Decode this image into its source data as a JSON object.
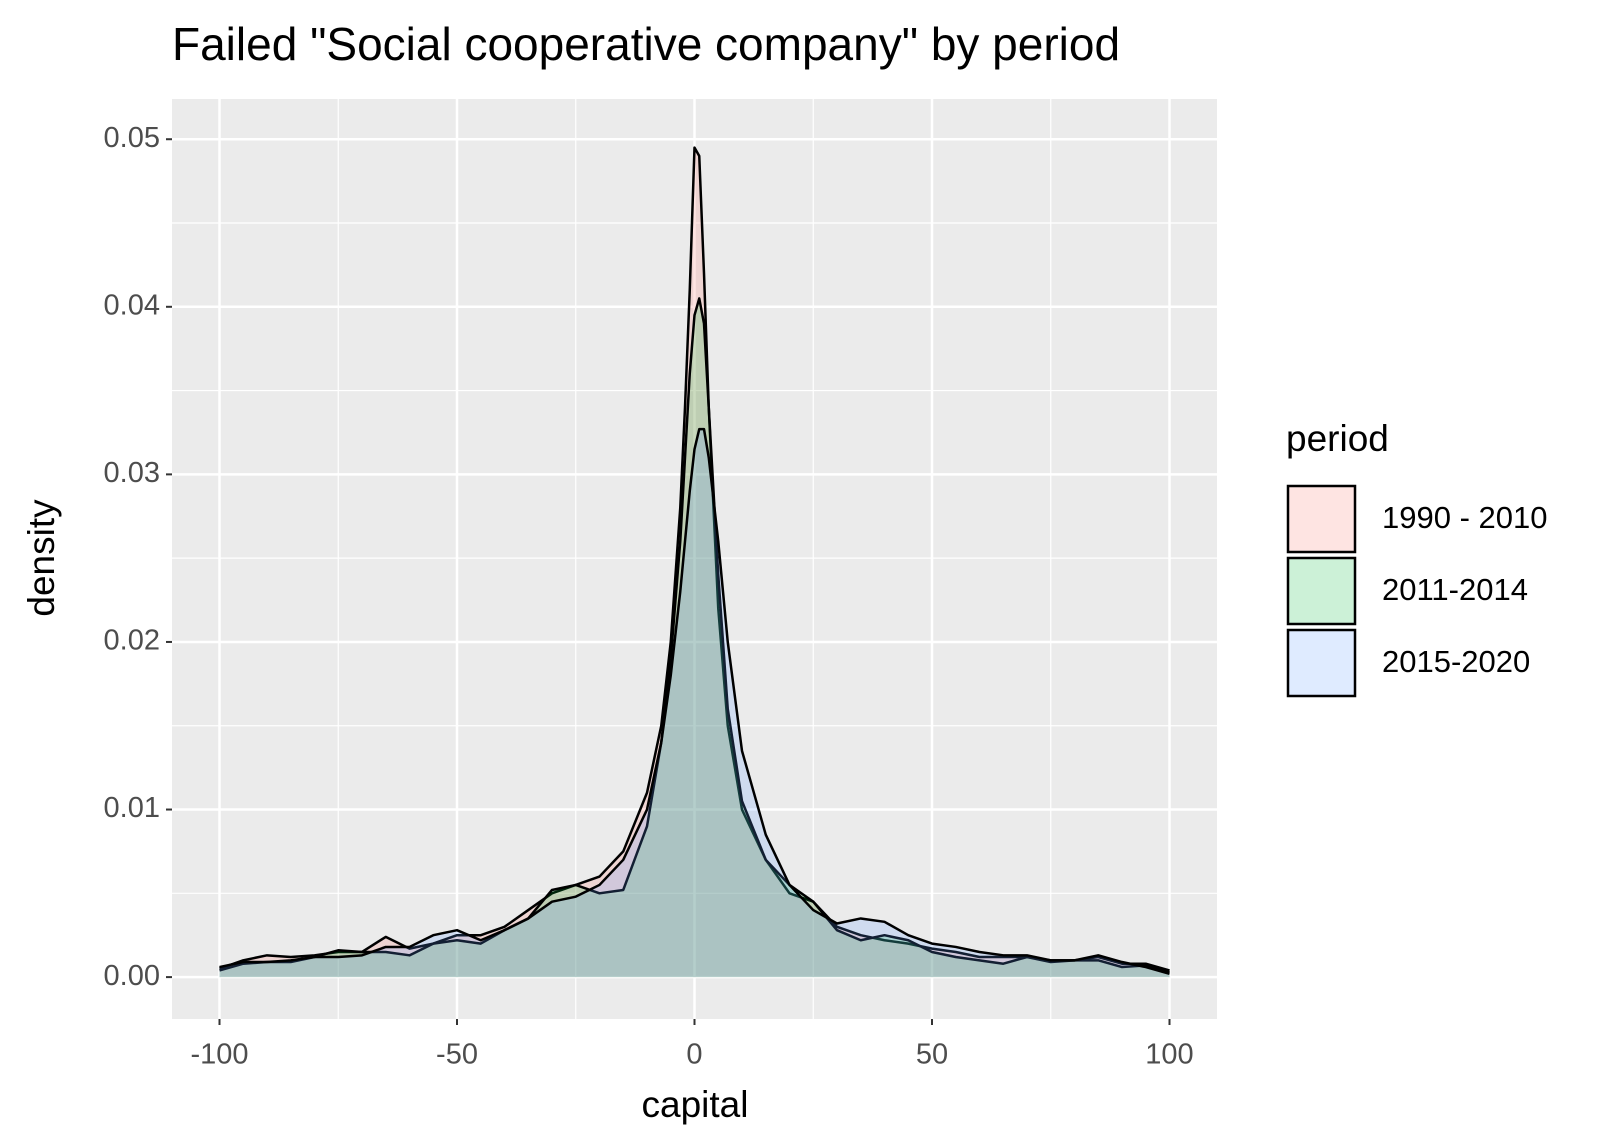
{
  "chart_data": {
    "type": "density",
    "title": "Failed \"Social cooperative company\" by period",
    "x_label": "capital",
    "y_label": "density",
    "legend_title": "period",
    "x": [
      -100,
      -95,
      -90,
      -85,
      -80,
      -75,
      -70,
      -65,
      -60,
      -55,
      -50,
      -45,
      -40,
      -35,
      -30,
      -25,
      -20,
      -15,
      -10,
      -7,
      -5,
      -3,
      -2,
      -1,
      0,
      1,
      2,
      3,
      5,
      7,
      10,
      15,
      20,
      25,
      30,
      35,
      40,
      45,
      50,
      55,
      60,
      65,
      70,
      75,
      80,
      85,
      90,
      95,
      100
    ],
    "series": [
      {
        "name": "1990 - 2010",
        "color": "#F8766D",
        "values": [
          0.0005,
          0.001,
          0.0013,
          0.0012,
          0.0013,
          0.0015,
          0.0015,
          0.0024,
          0.0017,
          0.002,
          0.0025,
          0.0025,
          0.003,
          0.004,
          0.005,
          0.0055,
          0.006,
          0.0075,
          0.011,
          0.015,
          0.02,
          0.028,
          0.034,
          0.041,
          0.0495,
          0.049,
          0.042,
          0.034,
          0.022,
          0.015,
          0.01,
          0.007,
          0.005,
          0.0045,
          0.003,
          0.0025,
          0.0022,
          0.002,
          0.0017,
          0.0015,
          0.0012,
          0.0012,
          0.0012,
          0.001,
          0.001,
          0.0012,
          0.0008,
          0.0008,
          0.0004
        ]
      },
      {
        "name": "2011-2014",
        "color": "#00BA38",
        "values": [
          0.0004,
          0.0008,
          0.0009,
          0.0009,
          0.0012,
          0.0016,
          0.0015,
          0.0015,
          0.0013,
          0.002,
          0.0022,
          0.002,
          0.0028,
          0.0035,
          0.0052,
          0.0055,
          0.005,
          0.0052,
          0.009,
          0.014,
          0.019,
          0.026,
          0.031,
          0.036,
          0.0395,
          0.0405,
          0.039,
          0.034,
          0.024,
          0.016,
          0.0105,
          0.007,
          0.0055,
          0.0045,
          0.0028,
          0.0022,
          0.0025,
          0.0022,
          0.0015,
          0.0012,
          0.001,
          0.0008,
          0.0012,
          0.0009,
          0.001,
          0.001,
          0.0006,
          0.0007,
          0.0003
        ]
      },
      {
        "name": "2015-2020",
        "color": "#619CFF",
        "values": [
          0.0006,
          0.0009,
          0.0009,
          0.001,
          0.0012,
          0.0012,
          0.0013,
          0.0018,
          0.0018,
          0.0025,
          0.0028,
          0.0022,
          0.0028,
          0.0035,
          0.0045,
          0.0048,
          0.0055,
          0.007,
          0.01,
          0.014,
          0.018,
          0.023,
          0.026,
          0.029,
          0.0315,
          0.0327,
          0.0327,
          0.031,
          0.026,
          0.02,
          0.0135,
          0.0085,
          0.0055,
          0.004,
          0.0032,
          0.0035,
          0.0033,
          0.0025,
          0.002,
          0.0018,
          0.0015,
          0.0013,
          0.0013,
          0.001,
          0.001,
          0.0013,
          0.0009,
          0.0006,
          0.0002
        ]
      }
    ],
    "fill_opacity": 0.2,
    "xlim": [
      -110,
      110
    ],
    "ylim": [
      -0.0025,
      0.0524
    ],
    "xticks": [
      -100,
      -50,
      0,
      50,
      100
    ],
    "yticks": [
      {
        "value": 0,
        "label": "0.00"
      },
      0.01,
      0.02,
      0.03,
      0.04,
      0.05
    ],
    "grid": true
  }
}
